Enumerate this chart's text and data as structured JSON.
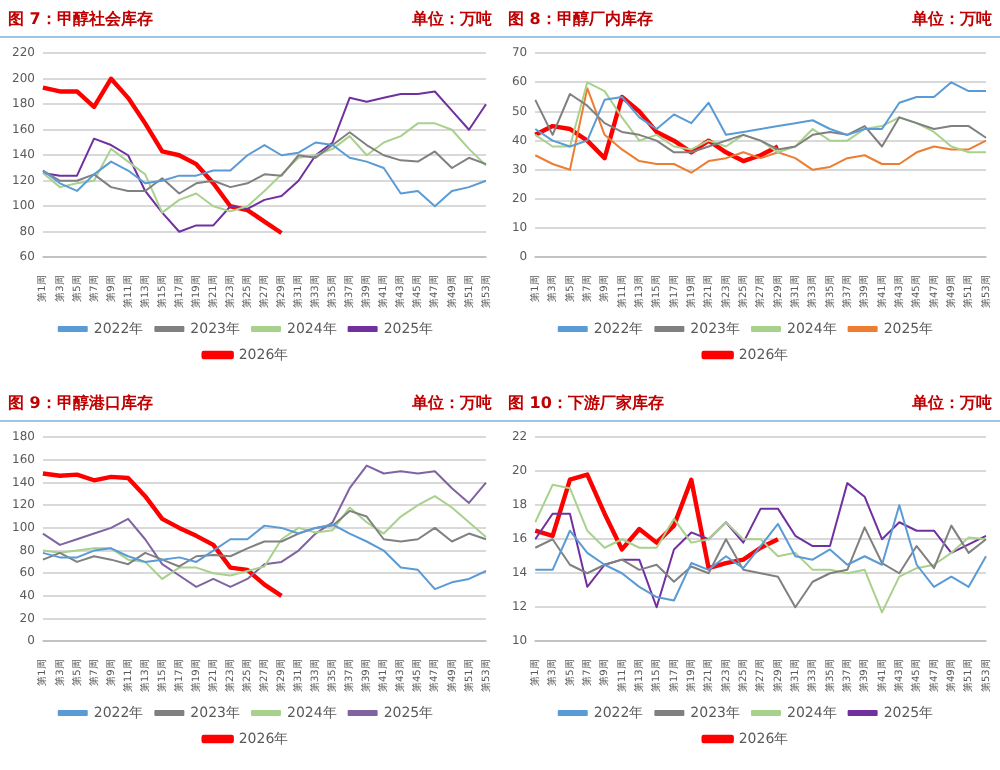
{
  "chart_data": [
    {
      "type": "line",
      "title": "图 7：甲醇社会库存",
      "subtitle": "单位：万吨",
      "categories": [
        "第1周",
        "第3周",
        "第5周",
        "第7周",
        "第9周",
        "第11周",
        "第13周",
        "第15周",
        "第17周",
        "第19周",
        "第21周",
        "第23周",
        "第25周",
        "第27周",
        "第29周",
        "第31周",
        "第33周",
        "第35周",
        "第37周",
        "第39周",
        "第41周",
        "第43周",
        "第45周",
        "第47周",
        "第49周",
        "第51周",
        "第53周"
      ],
      "ylim": [
        60,
        220
      ],
      "yticks": [
        60,
        80,
        100,
        120,
        140,
        160,
        180,
        200,
        220
      ],
      "grid": "y",
      "legend": "bottom",
      "series": [
        {
          "name": "2022年",
          "color": "#5b9bd5",
          "values": [
            128,
            118,
            112,
            125,
            135,
            128,
            118,
            120,
            124,
            124,
            128,
            128,
            140,
            148,
            140,
            142,
            150,
            148,
            138,
            135,
            130,
            110,
            112,
            100,
            112,
            115,
            120
          ]
        },
        {
          "name": "2023年",
          "color": "#808080",
          "values": [
            128,
            120,
            120,
            125,
            115,
            112,
            112,
            122,
            110,
            118,
            120,
            115,
            118,
            125,
            124,
            140,
            138,
            148,
            158,
            148,
            140,
            136,
            135,
            143,
            130,
            138,
            133
          ]
        },
        {
          "name": "2024年",
          "color": "#a9d18e",
          "values": [
            126,
            115,
            118,
            120,
            145,
            135,
            125,
            95,
            105,
            110,
            100,
            96,
            100,
            112,
            125,
            138,
            140,
            145,
            155,
            140,
            150,
            155,
            165,
            165,
            160,
            145,
            132
          ]
        },
        {
          "name": "2025年",
          "color": "#7030a0",
          "values": [
            126,
            124,
            124,
            153,
            148,
            140,
            112,
            95,
            80,
            85,
            85,
            100,
            98,
            105,
            108,
            120,
            140,
            150,
            185,
            182,
            185,
            188,
            188,
            190,
            175,
            160,
            180
          ]
        },
        {
          "name": "2026年",
          "color": "#ff0000",
          "values": [
            193,
            190,
            190,
            178,
            200,
            185,
            165,
            143,
            140,
            133,
            118,
            100,
            97,
            88,
            79,
            null,
            null,
            null,
            null,
            null,
            null,
            null,
            null,
            null,
            null,
            null,
            null
          ]
        }
      ]
    },
    {
      "type": "line",
      "title": "图 8：甲醇厂内库存",
      "subtitle": "单位：万吨",
      "categories": [
        "第1周",
        "第3周",
        "第5周",
        "第7周",
        "第9周",
        "第11周",
        "第13周",
        "第15周",
        "第17周",
        "第19周",
        "第21周",
        "第23周",
        "第25周",
        "第27周",
        "第29周",
        "第31周",
        "第33周",
        "第35周",
        "第37周",
        "第39周",
        "第41周",
        "第43周",
        "第45周",
        "第47周",
        "第49周",
        "第51周",
        "第53周"
      ],
      "ylim": [
        0,
        70
      ],
      "yticks": [
        0,
        10,
        20,
        30,
        40,
        50,
        60,
        70
      ],
      "grid": "y",
      "legend": "bottom",
      "series": [
        {
          "name": "2022年",
          "color": "#5b9bd5",
          "values": [
            44,
            40,
            38,
            40,
            54,
            55,
            48,
            44,
            49,
            46,
            53,
            42,
            43,
            44,
            45,
            46,
            47,
            44,
            42,
            44,
            44,
            53,
            55,
            55,
            60,
            57,
            57
          ]
        },
        {
          "name": "2023年",
          "color": "#808080",
          "values": [
            54,
            42,
            56,
            52,
            46,
            43,
            42,
            40,
            36,
            36,
            38,
            40,
            42,
            40,
            37,
            38,
            42,
            43,
            42,
            45,
            38,
            48,
            46,
            44,
            45,
            45,
            41
          ]
        },
        {
          "name": "2024年",
          "color": "#a9d18e",
          "values": [
            42,
            38,
            38,
            60,
            57,
            48,
            40,
            42,
            38,
            37,
            40,
            38,
            42,
            40,
            36,
            38,
            44,
            40,
            40,
            44,
            45,
            48,
            46,
            43,
            38,
            36,
            36
          ]
        },
        {
          "name": "2025年",
          "color": "#ed7d31",
          "values": [
            35,
            32,
            30,
            58,
            42,
            37,
            33,
            32,
            32,
            29,
            33,
            34,
            36,
            34,
            36,
            34,
            30,
            31,
            34,
            35,
            32,
            32,
            36,
            38,
            37,
            37,
            40
          ]
        },
        {
          "name": "2026年",
          "color": "#ff0000",
          "values": [
            42,
            45,
            44,
            40,
            34,
            55,
            50,
            43,
            40,
            36,
            40,
            36,
            33,
            35,
            38,
            null,
            null,
            null,
            null,
            null,
            null,
            null,
            null,
            null,
            null,
            null,
            null
          ]
        }
      ]
    },
    {
      "type": "line",
      "title": "图 9：甲醇港口库存",
      "subtitle": "单位：万吨",
      "categories": [
        "第1周",
        "第3周",
        "第5周",
        "第7周",
        "第9周",
        "第11周",
        "第13周",
        "第15周",
        "第17周",
        "第19周",
        "第21周",
        "第23周",
        "第25周",
        "第27周",
        "第29周",
        "第31周",
        "第33周",
        "第35周",
        "第37周",
        "第39周",
        "第41周",
        "第43周",
        "第45周",
        "第47周",
        "第49周",
        "第51周",
        "第53周"
      ],
      "ylim": [
        0,
        180
      ],
      "yticks": [
        0,
        20,
        40,
        60,
        80,
        100,
        120,
        140,
        160,
        180
      ],
      "grid": "y",
      "legend": "bottom",
      "series": [
        {
          "name": "2022年",
          "color": "#5b9bd5",
          "values": [
            78,
            74,
            74,
            80,
            82,
            75,
            70,
            72,
            74,
            70,
            80,
            90,
            90,
            102,
            100,
            95,
            100,
            103,
            95,
            88,
            80,
            65,
            63,
            46,
            52,
            55,
            62
          ]
        },
        {
          "name": "2023年",
          "color": "#808080",
          "values": [
            72,
            78,
            70,
            75,
            72,
            68,
            78,
            72,
            66,
            75,
            76,
            75,
            82,
            88,
            88,
            95,
            100,
            102,
            115,
            110,
            90,
            88,
            90,
            100,
            88,
            95,
            90
          ]
        },
        {
          "name": "2024年",
          "color": "#a9d18e",
          "values": [
            80,
            78,
            80,
            82,
            82,
            72,
            70,
            55,
            65,
            65,
            60,
            58,
            62,
            66,
            90,
            100,
            96,
            98,
            118,
            105,
            95,
            110,
            120,
            128,
            118,
            105,
            92
          ]
        },
        {
          "name": "2025年",
          "color": "#8064a2",
          "values": [
            95,
            85,
            90,
            95,
            100,
            108,
            90,
            68,
            58,
            48,
            55,
            48,
            55,
            68,
            70,
            80,
            95,
            105,
            135,
            155,
            148,
            150,
            148,
            150,
            135,
            122,
            140
          ]
        },
        {
          "name": "2026年",
          "color": "#ff0000",
          "values": [
            148,
            146,
            147,
            142,
            145,
            144,
            128,
            108,
            100,
            93,
            85,
            65,
            63,
            50,
            40,
            null,
            null,
            null,
            null,
            null,
            null,
            null,
            null,
            null,
            null,
            null,
            null
          ]
        }
      ]
    },
    {
      "type": "line",
      "title": "图 10：下游厂家库存",
      "subtitle": "单位：万吨",
      "categories": [
        "第1周",
        "第3周",
        "第5周",
        "第7周",
        "第9周",
        "第11周",
        "第13周",
        "第15周",
        "第17周",
        "第19周",
        "第21周",
        "第23周",
        "第25周",
        "第27周",
        "第29周",
        "第31周",
        "第33周",
        "第35周",
        "第37周",
        "第39周",
        "第41周",
        "第43周",
        "第45周",
        "第47周",
        "第49周",
        "第51周",
        "第53周"
      ],
      "ylim": [
        10,
        22
      ],
      "yticks": [
        10,
        12,
        14,
        16,
        18,
        20,
        22
      ],
      "grid": "y",
      "legend": "bottom",
      "series": [
        {
          "name": "2022年",
          "color": "#5b9bd5",
          "values": [
            14.2,
            14.2,
            16.5,
            15.2,
            14.5,
            14,
            13.2,
            12.6,
            12.4,
            14.6,
            14.2,
            15,
            14.3,
            15.6,
            16.9,
            15,
            14.8,
            15.4,
            14.5,
            15,
            14.5,
            18,
            14.5,
            13.2,
            13.8,
            13.2,
            15
          ]
        },
        {
          "name": "2023年",
          "color": "#808080",
          "values": [
            15.5,
            16,
            14.5,
            14,
            14.5,
            14.8,
            14.2,
            14.5,
            13.5,
            14.4,
            14,
            16,
            14.2,
            14,
            13.8,
            12,
            13.5,
            14,
            14.2,
            16.7,
            14.6,
            14,
            15.6,
            14.3,
            16.8,
            15.2,
            16
          ]
        },
        {
          "name": "2024年",
          "color": "#a9d18e",
          "values": [
            17,
            19.2,
            19,
            16.5,
            15.5,
            16,
            15.5,
            15.5,
            17.2,
            15.8,
            16,
            17,
            16,
            16,
            15,
            15.2,
            14.2,
            14.2,
            14,
            14.2,
            11.7,
            13.8,
            14.3,
            14.5,
            15.2,
            16.1,
            16
          ]
        },
        {
          "name": "2025年",
          "color": "#7030a0",
          "values": [
            16,
            17.5,
            17.5,
            13.2,
            14.5,
            14.8,
            14.8,
            12,
            15.4,
            16.4,
            16,
            17,
            15.8,
            17.8,
            17.8,
            16.2,
            15.6,
            15.6,
            19.3,
            18.5,
            16,
            17,
            16.5,
            16.5,
            15.2,
            15.7,
            16.2
          ]
        },
        {
          "name": "2026年",
          "color": "#ff0000",
          "values": [
            16.5,
            16.2,
            19.5,
            19.8,
            17.5,
            15.4,
            16.6,
            15.8,
            16.8,
            19.5,
            14.3,
            14.6,
            14.8,
            15.5,
            16,
            null,
            null,
            null,
            null,
            null,
            null,
            null,
            null,
            null,
            null,
            null,
            null
          ]
        }
      ]
    }
  ]
}
